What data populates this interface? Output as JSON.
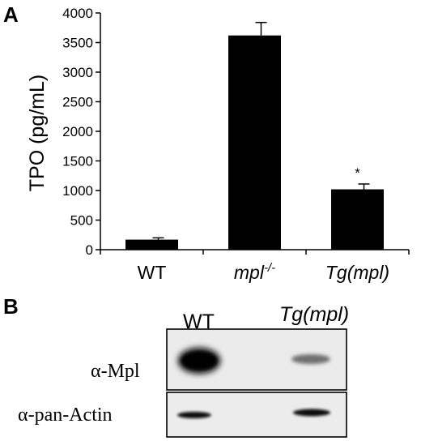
{
  "panels": {
    "a_label": "A",
    "b_label": "B"
  },
  "chart_data": {
    "type": "bar",
    "categories": [
      "WT",
      "mpl-/-",
      "Tg(mpl)"
    ],
    "category_labels": [
      {
        "base": "WT",
        "sup": "",
        "italic": false
      },
      {
        "base": "mpl",
        "sup": "-/-",
        "italic": true
      },
      {
        "base": "Tg(mpl)",
        "sup": "",
        "italic": true
      }
    ],
    "values": [
      170,
      3620,
      1020
    ],
    "errors": [
      30,
      220,
      90
    ],
    "significance": [
      "",
      "",
      "*"
    ],
    "ylabel": "TPO (pg/mL)",
    "ylim": [
      0,
      4000
    ],
    "yticks": [
      0,
      500,
      1000,
      1500,
      2000,
      2500,
      3000,
      3500,
      4000
    ],
    "bar_color": "#000000",
    "grid": false
  },
  "blot": {
    "lane_labels": [
      "WT",
      "Tg(mpl)"
    ],
    "rows": [
      {
        "label": "α-Mpl"
      },
      {
        "label": "α-pan-Actin"
      }
    ]
  }
}
